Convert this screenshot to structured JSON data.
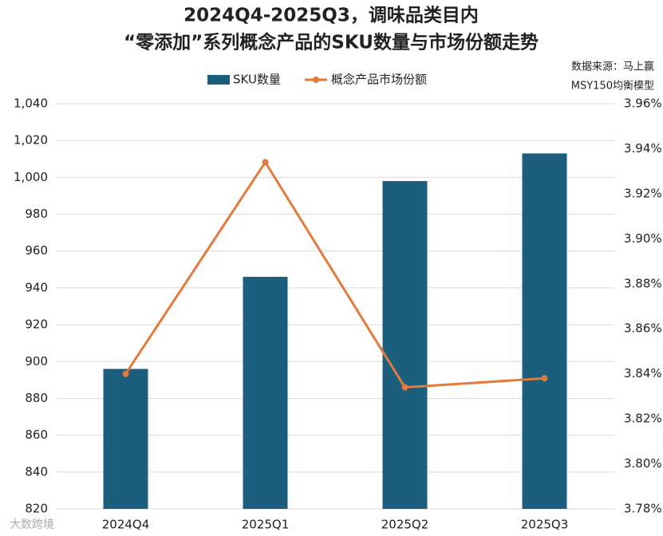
{
  "chart_data": {
    "type": "bar-line",
    "title": "2024Q4-2025Q3，调味品类目内",
    "subtitle": "“零添加”系列概念产品的SKU数量与市场份额走势",
    "source": "数据来源：马上赢",
    "source_model": "MSY150均衡模型",
    "watermark": "大数跨境",
    "categories": [
      "2024Q4",
      "2025Q1",
      "2025Q2",
      "2025Q3"
    ],
    "series": [
      {
        "name": "SKU数量",
        "type": "bar",
        "color": "#1b5e7e",
        "values": [
          896,
          946,
          998,
          1013
        ]
      },
      {
        "name": "概念产品市场份额",
        "type": "line",
        "axis": "y2",
        "color": "#e27a3a",
        "values": [
          3.84,
          3.934,
          3.834,
          3.838
        ]
      }
    ],
    "ylim": [
      820,
      1040
    ],
    "yticks": [
      820,
      840,
      860,
      880,
      900,
      920,
      940,
      960,
      980,
      {
        "value": 1000,
        "label": "1,000"
      },
      {
        "value": 1020,
        "label": "1,020"
      },
      {
        "value": 1040,
        "label": "1,040"
      }
    ],
    "y2lim": [
      3.78,
      3.96
    ],
    "y2ticks": [
      {
        "value": 3.78,
        "label": "3.78%"
      },
      {
        "value": 3.8,
        "label": "3.80%"
      },
      {
        "value": 3.82,
        "label": "3.82%"
      },
      {
        "value": 3.84,
        "label": "3.84%"
      },
      {
        "value": 3.86,
        "label": "3.86%"
      },
      {
        "value": 3.88,
        "label": "3.88%"
      },
      {
        "value": 3.9,
        "label": "3.90%"
      },
      {
        "value": 3.92,
        "label": "3.92%"
      },
      {
        "value": 3.94,
        "label": "3.94%"
      },
      {
        "value": 3.96,
        "label": "3.96%"
      }
    ],
    "grid": true,
    "legend": "top"
  }
}
